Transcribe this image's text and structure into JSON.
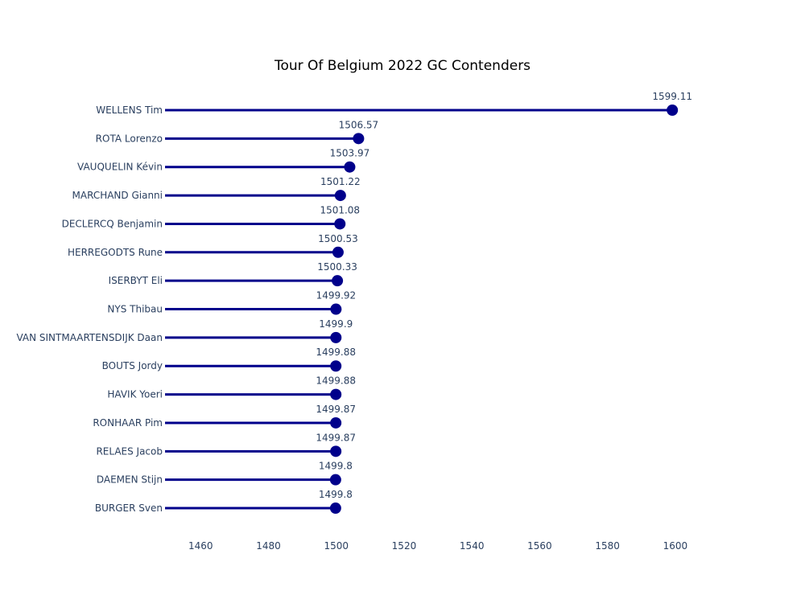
{
  "chart_data": {
    "type": "lollipop",
    "title": "Tour Of Belgium 2022 GC Contenders",
    "xlabel": "",
    "ylabel": "",
    "xlim": [
      1449.5,
      1614.5
    ],
    "xticks": [
      1460,
      1480,
      1500,
      1520,
      1540,
      1560,
      1580,
      1600
    ],
    "grid": false,
    "legend": "none",
    "colors": {
      "line": "#00008b",
      "marker": "#00008b"
    },
    "categories": [
      "WELLENS Tim",
      "ROTA Lorenzo",
      "VAUQUELIN Kévin",
      "MARCHAND Gianni",
      "DECLERCQ Benjamin",
      "HERREGODTS Rune",
      "ISERBYT Eli",
      "NYS Thibau",
      "VAN SINTMAARTENSDIJK Daan",
      "BOUTS Jordy",
      "HAVIK Yoeri",
      "RONHAAR Pim",
      "RELAES Jacob",
      "DAEMEN Stijn",
      "BURGER Sven"
    ],
    "values": [
      1599.11,
      1506.57,
      1503.97,
      1501.22,
      1501.08,
      1500.53,
      1500.33,
      1499.92,
      1499.9,
      1499.88,
      1499.88,
      1499.87,
      1499.87,
      1499.8,
      1499.8
    ],
    "value_labels": [
      "1599.11",
      "1506.57",
      "1503.97",
      "1501.22",
      "1501.08",
      "1500.53",
      "1500.33",
      "1499.92",
      "1499.9",
      "1499.88",
      "1499.88",
      "1499.87",
      "1499.87",
      "1499.8",
      "1499.8"
    ]
  }
}
